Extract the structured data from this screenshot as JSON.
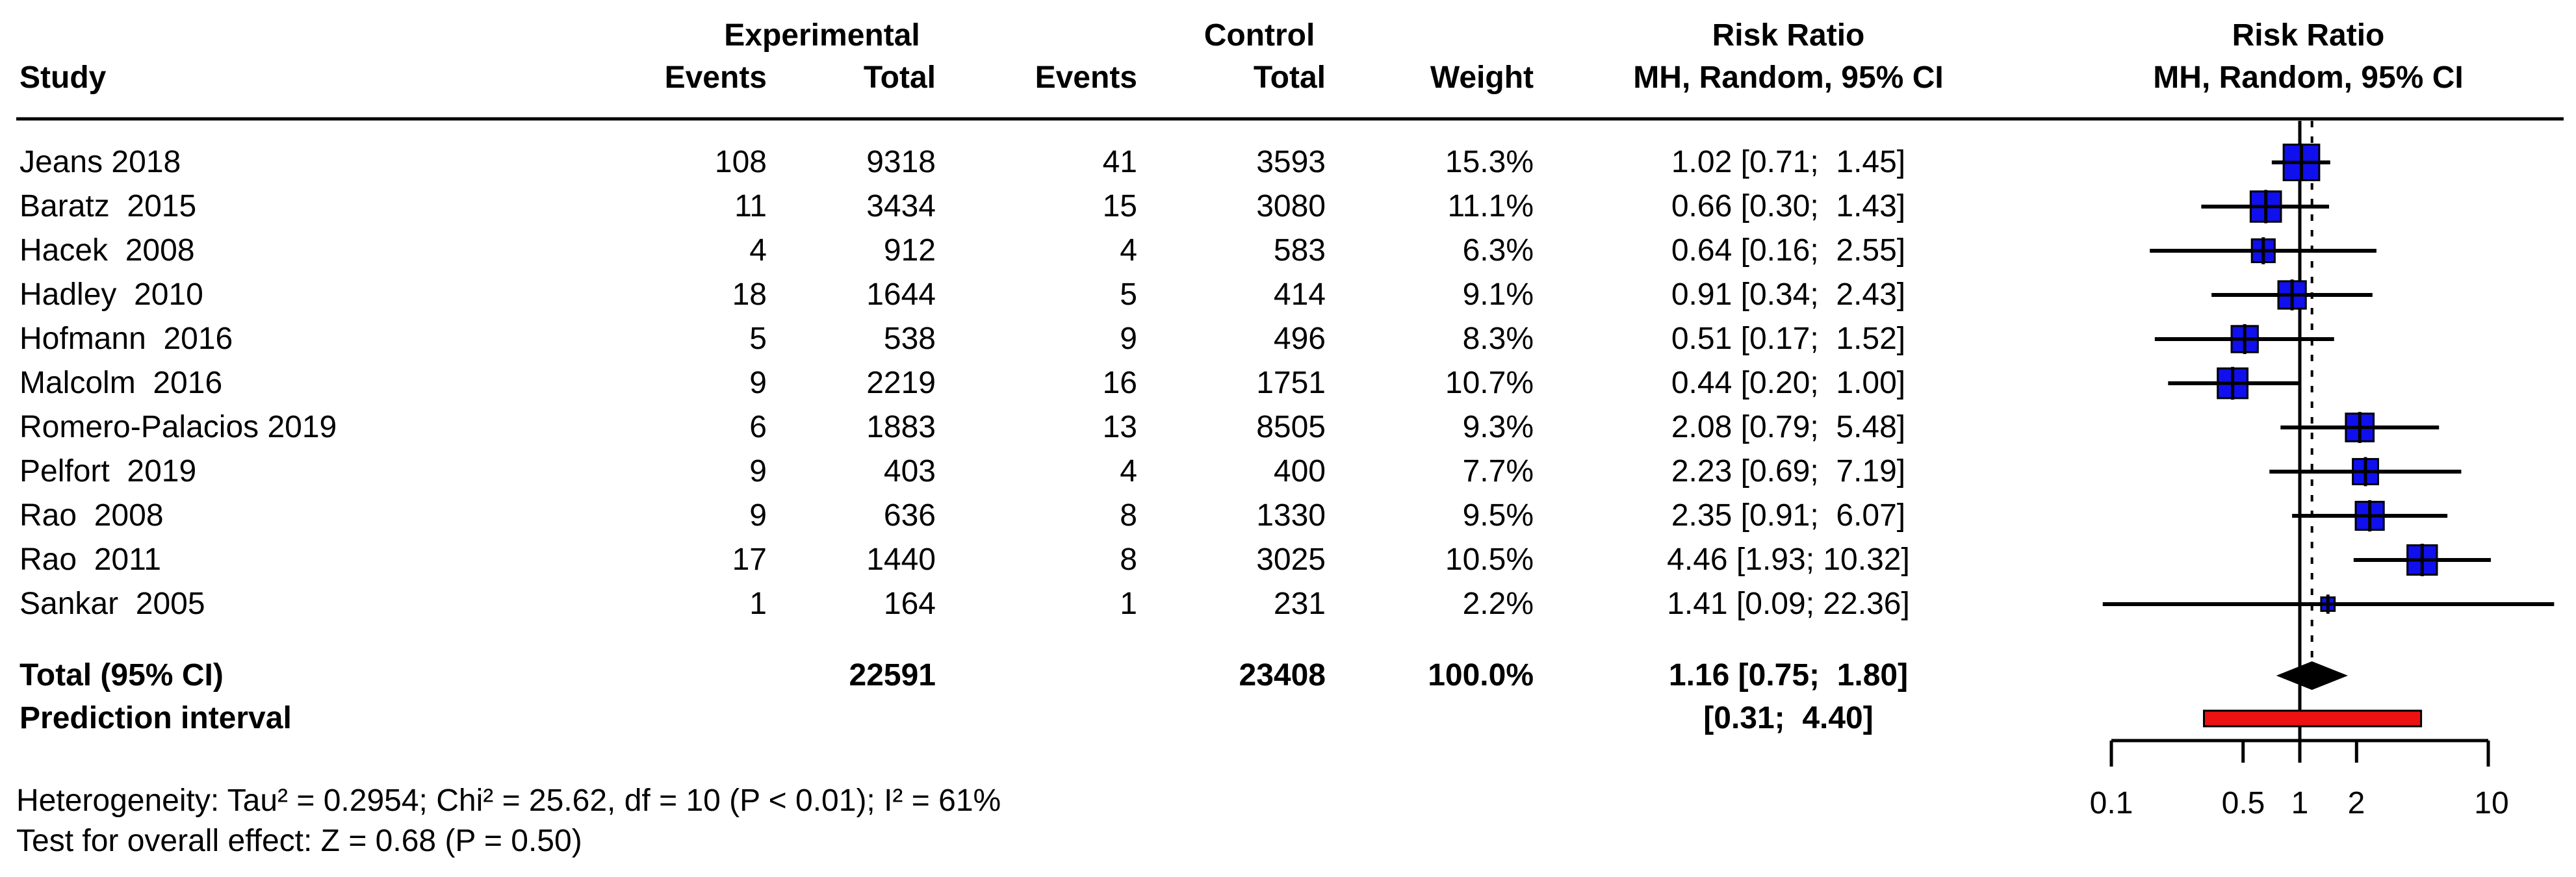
{
  "header": {
    "study_col": "Study",
    "group_experimental": "Experimental",
    "group_control": "Control",
    "events_exp": "Events",
    "total_exp": "Total",
    "events_ctl": "Events",
    "total_ctl": "Total",
    "weight": "Weight",
    "rr_col": {
      "title": "Risk Ratio",
      "subtitle": "MH, Random, 95% CI"
    },
    "plot_col": {
      "title": "Risk Ratio",
      "subtitle": "MH, Random, 95% CI"
    }
  },
  "chart_data": {
    "type": "forest",
    "x_scale": "log10",
    "effect_measure": "Risk Ratio",
    "model": "MH, Random, 95% CI",
    "axis": {
      "min": 0.1,
      "max": 10,
      "ticks": [
        0.1,
        0.5,
        1,
        2,
        10
      ],
      "tick_labels": [
        "0.1",
        "0.5",
        "1",
        "2",
        "10"
      ],
      "ref_line": 1,
      "pooled_dashed_line": 1.16
    },
    "studies": [
      {
        "label": "Jeans 2018",
        "events_exp": "108",
        "total_exp": "9318",
        "events_ctl": "41",
        "total_ctl": "3593",
        "weight": "15.3%",
        "weight_val": 15.3,
        "rr": 1.02,
        "lo": 0.71,
        "hi": 1.45,
        "ci_text": "1.02 [0.71;  1.45]"
      },
      {
        "label": "Baratz  2015",
        "events_exp": "11",
        "total_exp": "3434",
        "events_ctl": "15",
        "total_ctl": "3080",
        "weight": "11.1%",
        "weight_val": 11.1,
        "rr": 0.66,
        "lo": 0.3,
        "hi": 1.43,
        "ci_text": "0.66 [0.30;  1.43]"
      },
      {
        "label": "Hacek  2008",
        "events_exp": "4",
        "total_exp": "912",
        "events_ctl": "4",
        "total_ctl": "583",
        "weight": "6.3%",
        "weight_val": 6.3,
        "rr": 0.64,
        "lo": 0.16,
        "hi": 2.55,
        "ci_text": "0.64 [0.16;  2.55]"
      },
      {
        "label": "Hadley  2010",
        "events_exp": "18",
        "total_exp": "1644",
        "events_ctl": "5",
        "total_ctl": "414",
        "weight": "9.1%",
        "weight_val": 9.1,
        "rr": 0.91,
        "lo": 0.34,
        "hi": 2.43,
        "ci_text": "0.91 [0.34;  2.43]"
      },
      {
        "label": "Hofmann  2016",
        "events_exp": "5",
        "total_exp": "538",
        "events_ctl": "9",
        "total_ctl": "496",
        "weight": "8.3%",
        "weight_val": 8.3,
        "rr": 0.51,
        "lo": 0.17,
        "hi": 1.52,
        "ci_text": "0.51 [0.17;  1.52]"
      },
      {
        "label": "Malcolm  2016",
        "events_exp": "9",
        "total_exp": "2219",
        "events_ctl": "16",
        "total_ctl": "1751",
        "weight": "10.7%",
        "weight_val": 10.7,
        "rr": 0.44,
        "lo": 0.2,
        "hi": 1.0,
        "ci_text": "0.44 [0.20;  1.00]"
      },
      {
        "label": "Romero-Palacios 2019",
        "events_exp": "6",
        "total_exp": "1883",
        "events_ctl": "13",
        "total_ctl": "8505",
        "weight": "9.3%",
        "weight_val": 9.3,
        "rr": 2.08,
        "lo": 0.79,
        "hi": 5.48,
        "ci_text": "2.08 [0.79;  5.48]"
      },
      {
        "label": "Pelfort  2019",
        "events_exp": "9",
        "total_exp": "403",
        "events_ctl": "4",
        "total_ctl": "400",
        "weight": "7.7%",
        "weight_val": 7.7,
        "rr": 2.23,
        "lo": 0.69,
        "hi": 7.19,
        "ci_text": "2.23 [0.69;  7.19]"
      },
      {
        "label": "Rao  2008",
        "events_exp": "9",
        "total_exp": "636",
        "events_ctl": "8",
        "total_ctl": "1330",
        "weight": "9.5%",
        "weight_val": 9.5,
        "rr": 2.35,
        "lo": 0.91,
        "hi": 6.07,
        "ci_text": "2.35 [0.91;  6.07]"
      },
      {
        "label": "Rao  2011",
        "events_exp": "17",
        "total_exp": "1440",
        "events_ctl": "8",
        "total_ctl": "3025",
        "weight": "10.5%",
        "weight_val": 10.5,
        "rr": 4.46,
        "lo": 1.93,
        "hi": 10.32,
        "ci_text": "4.46 [1.93; 10.32]"
      },
      {
        "label": "Sankar  2005",
        "events_exp": "1",
        "total_exp": "164",
        "events_ctl": "1",
        "total_ctl": "231",
        "weight": "2.2%",
        "weight_val": 2.2,
        "rr": 1.41,
        "lo": 0.09,
        "hi": 22.36,
        "ci_text": "1.41 [0.09; 22.36]"
      }
    ],
    "total": {
      "label": "Total (95% CI)",
      "total_exp": "22591",
      "total_ctl": "23408",
      "weight": "100.0%",
      "rr": 1.16,
      "lo": 0.75,
      "hi": 1.8,
      "ci_text": "1.16 [0.75;  1.80]"
    },
    "prediction": {
      "label": "Prediction interval",
      "lo": 0.31,
      "hi": 4.4,
      "ci_text": "[0.31;  4.40]"
    },
    "colors": {
      "square": "#1010EE",
      "diamond": "#000000",
      "prediction_bar": "#EE1111",
      "line": "#000000"
    }
  },
  "footer": {
    "heterogeneity": "Heterogeneity: Tau² = 0.2954; Chi² = 25.62, df = 10 (P < 0.01); I² = 61%",
    "overall_effect": "Test for overall effect: Z = 0.68 (P = 0.50)"
  }
}
